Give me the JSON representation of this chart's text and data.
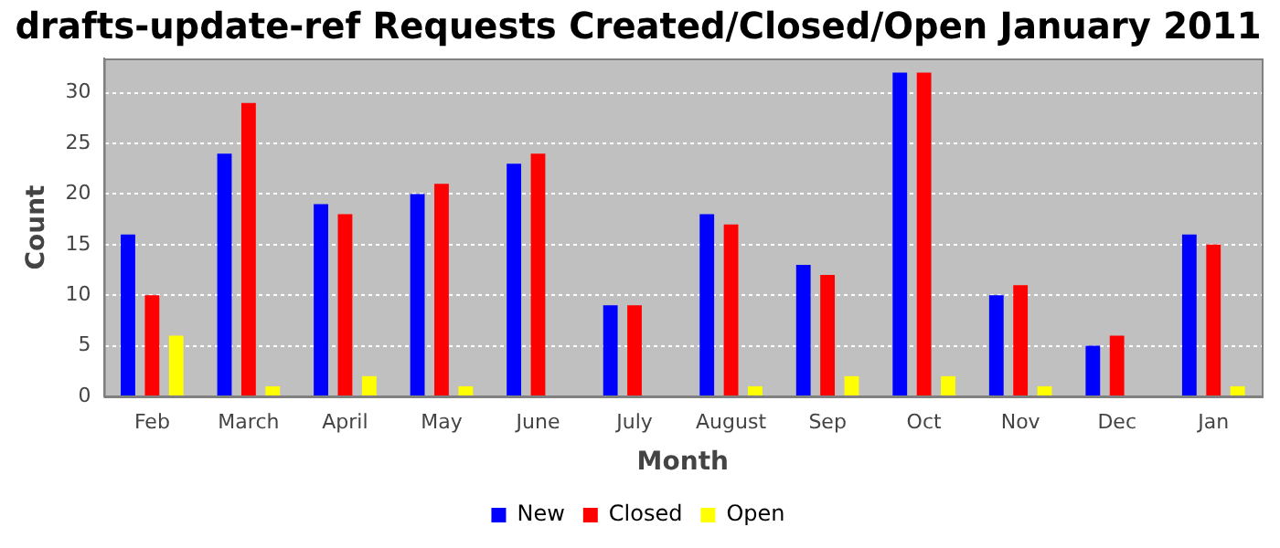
{
  "chart_data": {
    "type": "bar",
    "title": "drafts-update-ref Requests Created/Closed/Open January 2011",
    "xlabel": "Month",
    "ylabel": "Count",
    "categories": [
      "Feb",
      "March",
      "April",
      "May",
      "June",
      "July",
      "August",
      "Sep",
      "Oct",
      "Nov",
      "Dec",
      "Jan"
    ],
    "series": [
      {
        "name": "New",
        "color": "#0000ff",
        "values": [
          16,
          24,
          19,
          20,
          23,
          9,
          18,
          13,
          32,
          10,
          5,
          16
        ]
      },
      {
        "name": "Closed",
        "color": "#ff0000",
        "values": [
          10,
          29,
          18,
          21,
          24,
          9,
          17,
          12,
          32,
          11,
          6,
          15
        ]
      },
      {
        "name": "Open",
        "color": "#ffff00",
        "values": [
          6,
          1,
          2,
          1,
          0,
          0,
          1,
          2,
          2,
          1,
          0,
          1
        ]
      }
    ],
    "ylim": [
      0,
      33.4
    ],
    "yticks": [
      0,
      5,
      10,
      15,
      20,
      25,
      30
    ],
    "grid": "y",
    "legend": "bottom"
  }
}
